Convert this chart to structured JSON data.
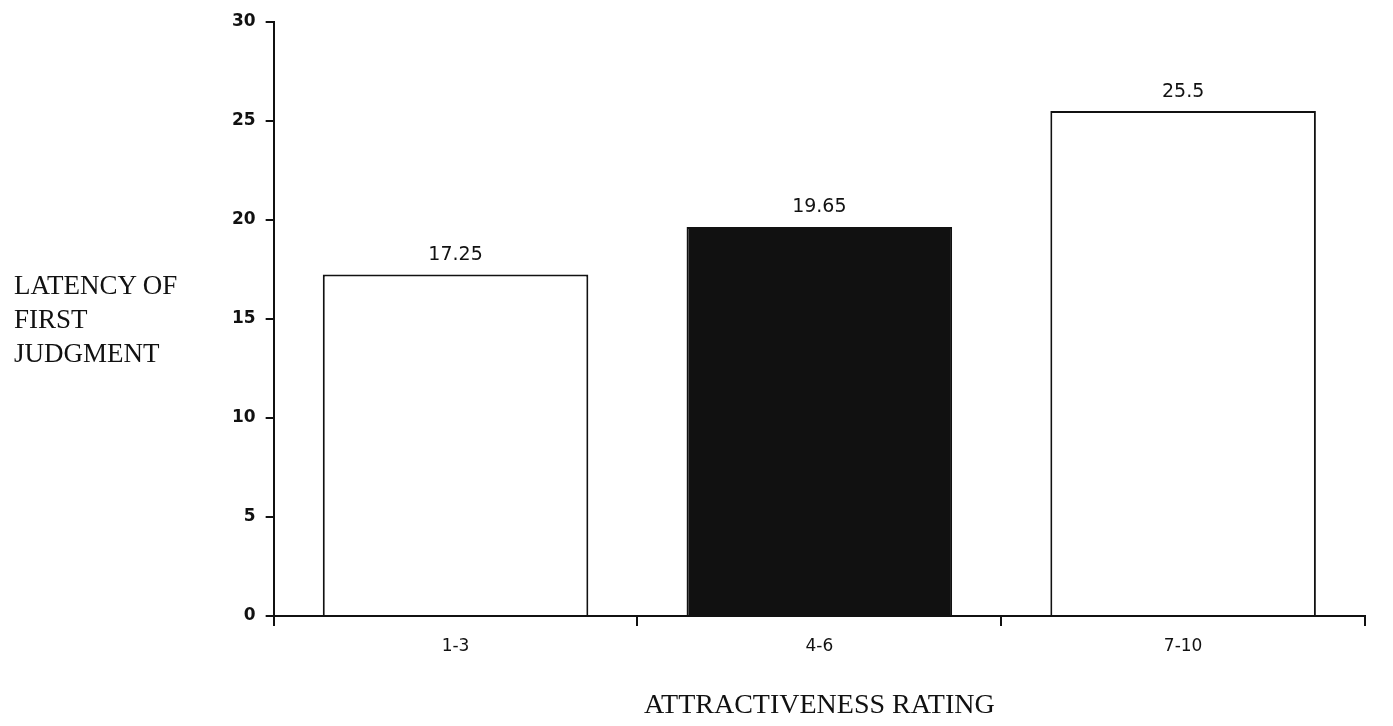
{
  "chart_data": {
    "type": "bar",
    "xlabel": "ATTRACTIVENESS RATING",
    "ylabel": "LATENCY OF FIRST JUDGMENT",
    "categories": [
      "1-3",
      "4-6",
      "7-10"
    ],
    "values": [
      17.25,
      19.65,
      25.5
    ],
    "colors": [
      "#ffffff",
      "#111111",
      "#ffffff"
    ],
    "ylim": [
      0,
      30
    ],
    "yticks": [
      0,
      5,
      10,
      15,
      20,
      25,
      30
    ],
    "data_labels": true,
    "grid": false,
    "legend": false
  }
}
